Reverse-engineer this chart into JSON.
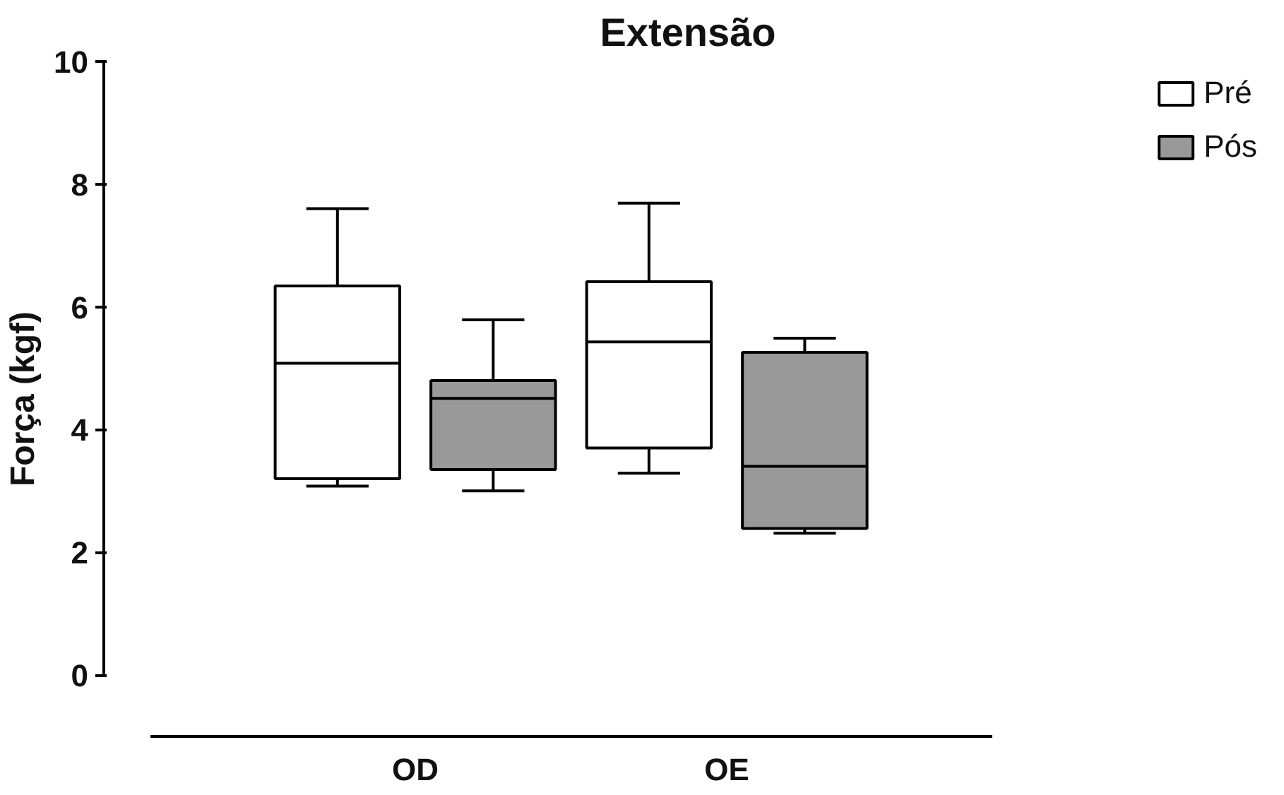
{
  "chart_data": {
    "type": "box",
    "title": "Extensão",
    "ylabel": "Força (kgf)",
    "categories": [
      "OD",
      "OE"
    ],
    "ylim": [
      -1,
      10
    ],
    "yticks": [
      0,
      2,
      4,
      6,
      8,
      10
    ],
    "legend": "top right",
    "grid": false,
    "series": [
      {
        "name": "Pré",
        "color": "#ffffff",
        "boxes": [
          {
            "low": 3.08,
            "q1": 3.2,
            "median": 5.08,
            "q3": 6.34,
            "high": 7.6
          },
          {
            "low": 3.29,
            "q1": 3.7,
            "median": 5.43,
            "q3": 6.41,
            "high": 7.69
          }
        ]
      },
      {
        "name": "Pós",
        "color": "#999999",
        "boxes": [
          {
            "low": 3.0,
            "q1": 3.35,
            "median": 4.51,
            "q3": 4.8,
            "high": 5.79
          },
          {
            "low": 2.31,
            "q1": 2.39,
            "median": 3.4,
            "q3": 5.26,
            "high": 5.49
          }
        ]
      }
    ]
  }
}
